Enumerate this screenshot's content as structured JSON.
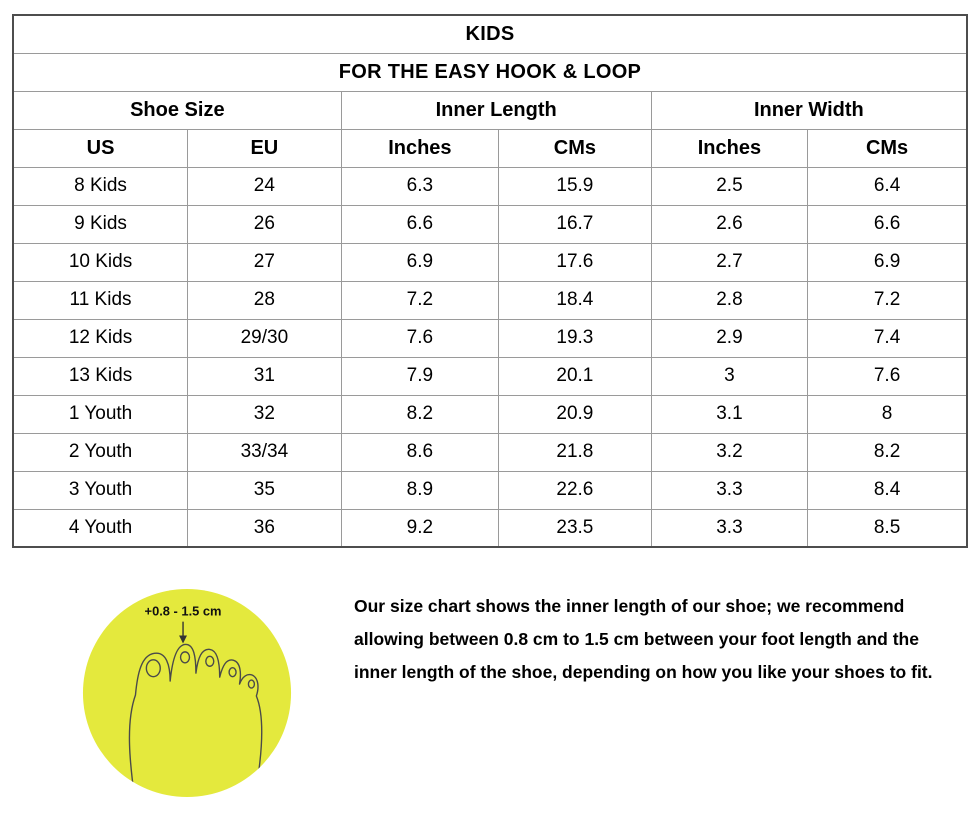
{
  "chart_data": {
    "type": "table",
    "title": "KIDS",
    "subtitle": "FOR THE EASY HOOK & LOOP",
    "column_groups": [
      "Shoe Size",
      "Inner Length",
      "Inner Width"
    ],
    "columns": [
      "US",
      "EU",
      "Inches",
      "CMs",
      "Inches",
      "CMs"
    ],
    "rows": [
      [
        "8 Kids",
        "24",
        "6.3",
        "15.9",
        "2.5",
        "6.4"
      ],
      [
        "9 Kids",
        "26",
        "6.6",
        "16.7",
        "2.6",
        "6.6"
      ],
      [
        "10 Kids",
        "27",
        "6.9",
        "17.6",
        "2.7",
        "6.9"
      ],
      [
        "11 Kids",
        "28",
        "7.2",
        "18.4",
        "2.8",
        "7.2"
      ],
      [
        "12 Kids",
        "29/30",
        "7.6",
        "19.3",
        "2.9",
        "7.4"
      ],
      [
        "13 Kids",
        "31",
        "7.9",
        "20.1",
        "3",
        "7.6"
      ],
      [
        "1 Youth",
        "32",
        "8.2",
        "20.9",
        "3.1",
        "8"
      ],
      [
        "2 Youth",
        "33/34",
        "8.6",
        "21.8",
        "3.2",
        "8.2"
      ],
      [
        "3 Youth",
        "35",
        "8.9",
        "22.6",
        "3.3",
        "8.4"
      ],
      [
        "4 Youth",
        "36",
        "9.2",
        "23.5",
        "3.3",
        "8.5"
      ]
    ]
  },
  "foot_diagram": {
    "annotation": "+0.8 - 1.5 cm",
    "circle_color": "#e4e93d",
    "line_color": "#4a4a4a"
  },
  "note_text": "Our size chart shows the inner length of our shoe; we recommend allowing between 0.8 cm to 1.5 cm between your foot length and the inner length of the shoe, depending on how you like your shoes to fit."
}
